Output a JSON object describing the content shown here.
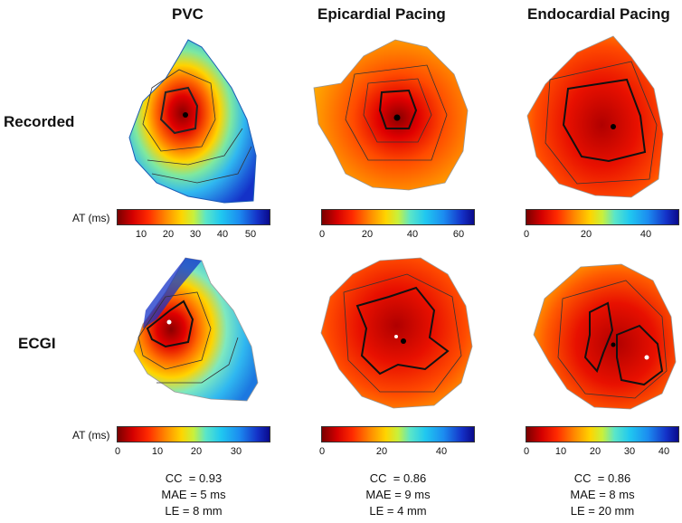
{
  "columns": {
    "pvc": "PVC",
    "epi": "Epicardial Pacing",
    "endo": "Endocardial Pacing"
  },
  "rows": {
    "recorded": "Recorded",
    "ecgi": "ECGI"
  },
  "colorbar_label": "AT (ms)",
  "colorbars": {
    "rec_pvc": [
      "10",
      "20",
      "30",
      "40",
      "50"
    ],
    "rec_epi": [
      "0",
      "20",
      "40",
      "60"
    ],
    "rec_endo": [
      "0",
      "20",
      "40"
    ],
    "ecgi_pvc": [
      "0",
      "10",
      "20",
      "30"
    ],
    "ecgi_epi": [
      "0",
      "20",
      "40"
    ],
    "ecgi_endo": [
      "0",
      "10",
      "20",
      "30",
      "40"
    ]
  },
  "metrics": {
    "pvc": {
      "cc": "CC  = 0.93",
      "mae": "MAE = 5 ms",
      "le": "LE = 8 mm"
    },
    "epi": {
      "cc": "CC  = 0.86",
      "mae": "MAE = 9 ms",
      "le": "LE = 4 mm"
    },
    "endo": {
      "cc": "CC  = 0.86",
      "mae": "MAE = 8 ms",
      "le": "LE = 20 mm"
    }
  },
  "colors": {
    "early": "#a00000",
    "mid": "#ff4a00",
    "late": "#1432c8"
  }
}
